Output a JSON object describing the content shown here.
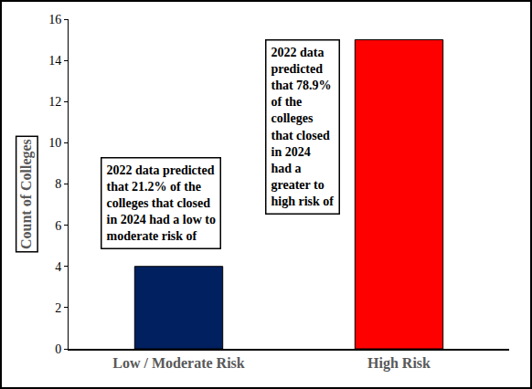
{
  "chart_data": {
    "type": "bar",
    "categories": [
      "Low / Moderate Risk",
      "High Risk"
    ],
    "values": [
      4,
      15
    ],
    "colors": [
      "#002060",
      "#ff0000"
    ],
    "y_label": "Count of Colleges",
    "ylim": [
      0,
      16
    ],
    "yticks": [
      0,
      2,
      4,
      6,
      8,
      10,
      12,
      14,
      16
    ],
    "grid": false,
    "data_labels": false,
    "annotations": [
      {
        "lines": [
          "2022 data predicted",
          "that 21.2% of the",
          "colleges that closed",
          "in 2024 had a low to",
          "moderate risk of"
        ]
      },
      {
        "lines": [
          "2022 data",
          "predicted",
          "that 78.9%",
          "of the",
          "colleges",
          "that closed",
          "in 2024",
          "had a",
          "greater to",
          "high risk of"
        ]
      }
    ]
  }
}
